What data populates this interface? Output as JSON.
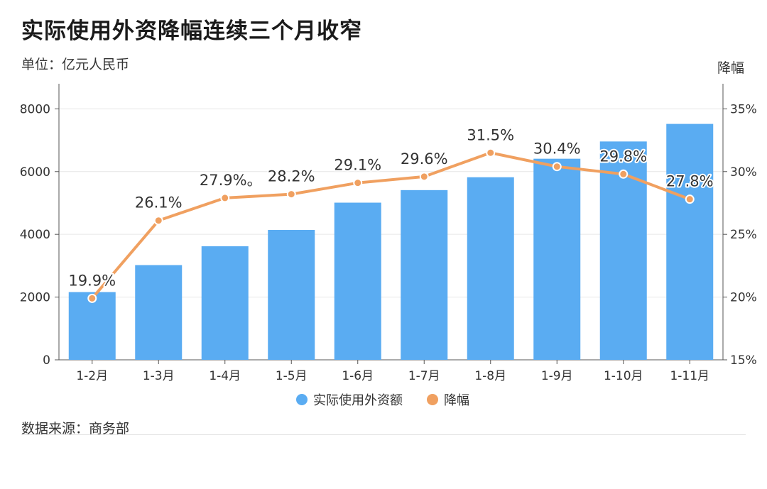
{
  "title": "实际使用外资降幅连续三个月收窄",
  "unit_label": "单位：亿元人民币",
  "source": "数据来源：商务部",
  "colors": {
    "bar": "#5aacf2",
    "line": "#f0a060",
    "grid": "#e6e6e6",
    "axis": "#555555"
  },
  "chart_data": {
    "type": "bar",
    "categories": [
      "1-2月",
      "1-3月",
      "1-4月",
      "1-5月",
      "1-6月",
      "1-7月",
      "1-8月",
      "1-9月",
      "1-10月",
      "1-11月"
    ],
    "series": [
      {
        "name": "实际使用外资额",
        "type": "bar",
        "axis": "left",
        "values": [
          2160,
          3020,
          3620,
          4140,
          5010,
          5410,
          5820,
          6410,
          6960,
          7520
        ]
      },
      {
        "name": "降幅",
        "type": "line",
        "axis": "right",
        "values": [
          19.9,
          26.1,
          27.9,
          28.2,
          29.1,
          29.6,
          31.5,
          30.4,
          29.8,
          27.8
        ],
        "labels": [
          "19.9%",
          "26.1%",
          "27.9%。",
          "28.2%",
          "29.1%",
          "29.6%",
          "31.5%",
          "30.4%",
          "29.8%",
          "27.8%"
        ]
      }
    ],
    "y_left": {
      "ylim": [
        0,
        8800
      ],
      "ticks": [
        0,
        2000,
        4000,
        6000,
        8000
      ],
      "tick_labels": [
        "0",
        "2000",
        "4000",
        "6000",
        "8000"
      ]
    },
    "y_right": {
      "title": "降幅",
      "ylim": [
        15,
        37
      ],
      "ticks": [
        15,
        20,
        25,
        30,
        35
      ],
      "tick_labels": [
        "15%",
        "20%",
        "25%",
        "30%",
        "35%"
      ]
    },
    "grid": true,
    "legend": "bottom-center"
  }
}
